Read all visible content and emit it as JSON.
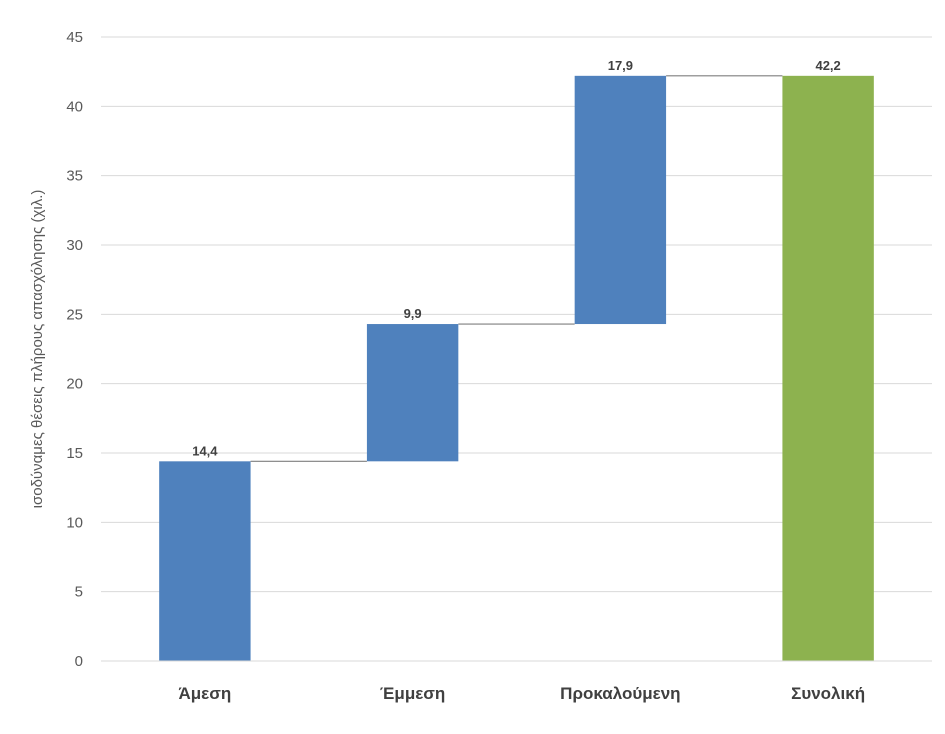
{
  "chart_data": {
    "type": "bar",
    "subtype": "waterfall",
    "title": "",
    "xlabel": "",
    "ylabel": "ισοδύναμες θέσεις πλήρους απασχόλησης (χιλ.)",
    "ylim": [
      0,
      45
    ],
    "yticks": [
      0,
      5,
      10,
      15,
      20,
      25,
      30,
      35,
      40,
      45
    ],
    "grid": true,
    "legend": "none",
    "categories": [
      "Άμεση",
      "Έμμεση",
      "Προκαλούμενη",
      "Συνολική"
    ],
    "values": [
      14.4,
      9.9,
      17.9,
      42.2
    ],
    "bases": [
      0,
      14.4,
      24.3,
      0
    ],
    "data_labels": [
      "14,4",
      "9,9",
      "17,9",
      "42,2"
    ],
    "colors": {
      "increment": "#4f81bd",
      "total": "#8db24f",
      "connector": "#7f7f7f",
      "grid": "#d9d9d9"
    }
  }
}
